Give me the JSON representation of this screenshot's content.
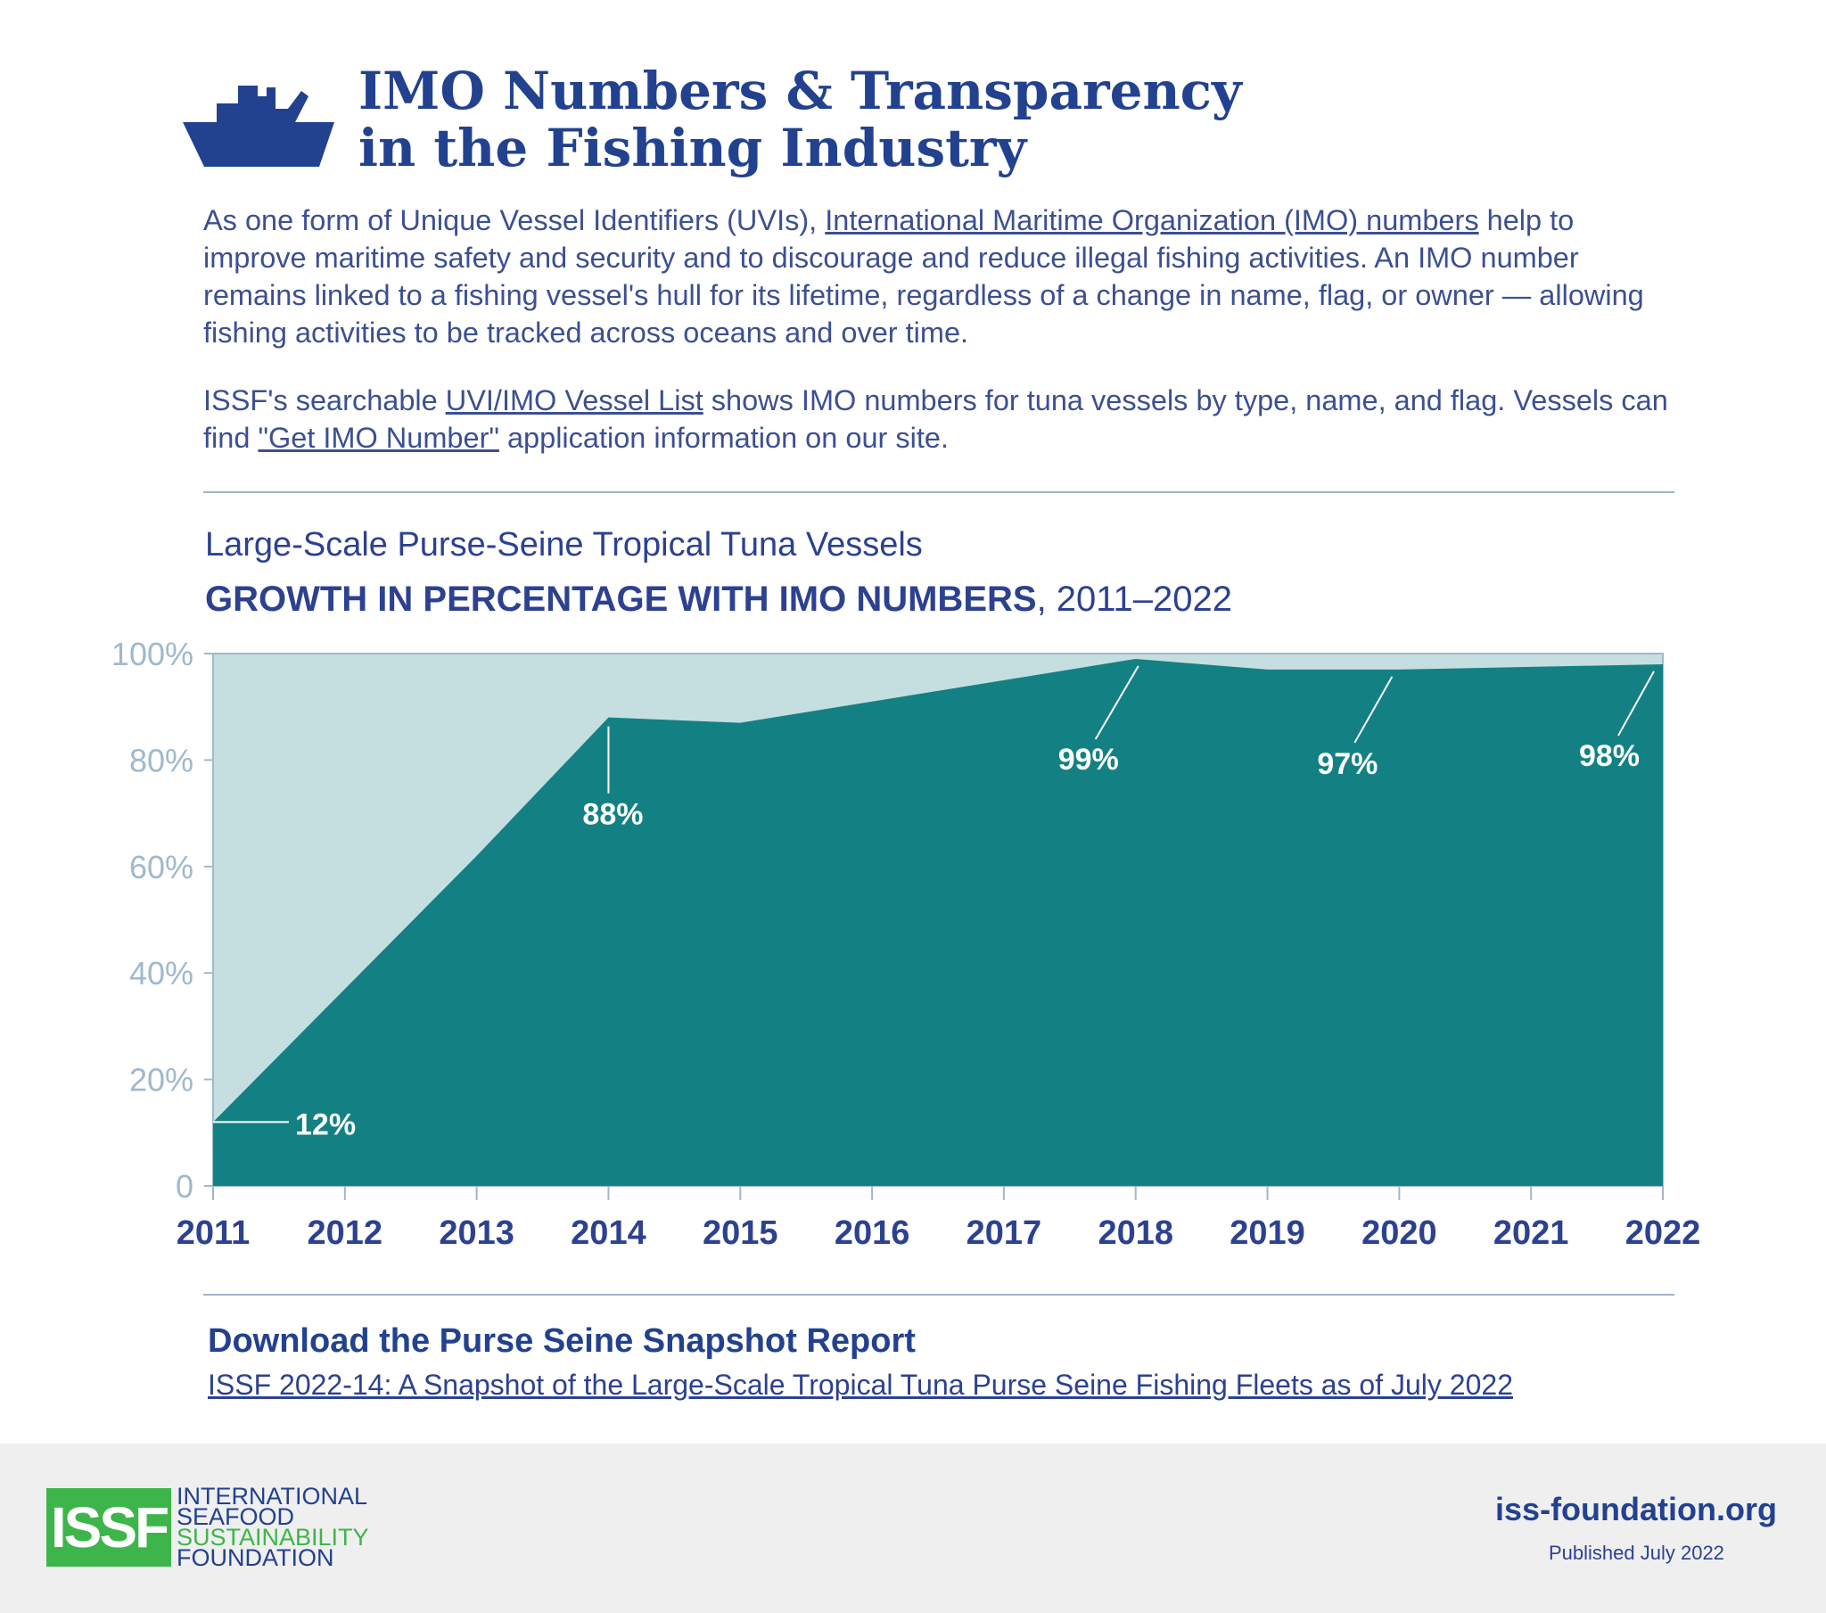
{
  "title": {
    "line1": "IMO Numbers & Transparency",
    "line2": "in the Fishing Industry"
  },
  "intro": {
    "p1_before": "As one form of Unique Vessel Identifiers (UVIs), ",
    "p1_link": "International Maritime Organization (IMO) numbers",
    "p1_after": " help to improve maritime safety and security and to discourage and reduce illegal fishing activities. An IMO number remains linked to a fishing vessel's hull for its lifetime, regardless of a change in name, flag, or owner — allowing fishing activities to be tracked across oceans and over time.",
    "p2_before": "ISSF's searchable ",
    "p2_link1": "UVI/IMO Vessel List",
    "p2_middle": " shows IMO numbers for tuna vessels by type, name, and flag. Vessels can find ",
    "p2_link2": "\"Get IMO Number\"",
    "p2_after": " application information on our site."
  },
  "chart_data": {
    "type": "area",
    "subtitle": "Large-Scale Purse-Seine Tropical Tuna Vessels",
    "title_bold": "GROWTH IN PERCENTAGE WITH IMO NUMBERS",
    "title_range": ", 2011–2022",
    "x": [
      "2011",
      "2012",
      "2013",
      "2014",
      "2015",
      "2016",
      "2017",
      "2018",
      "2019",
      "2020",
      "2021",
      "2022"
    ],
    "values": [
      12,
      37,
      62,
      88,
      87,
      91,
      95,
      99,
      97,
      97,
      97.5,
      98
    ],
    "ylim": [
      0,
      100
    ],
    "yticks": [
      0,
      20,
      40,
      60,
      80,
      100
    ],
    "ytick_labels": [
      "0",
      "20%",
      "40%",
      "60%",
      "80%",
      "100%"
    ],
    "data_labels": [
      {
        "year": "2011",
        "text": "12%"
      },
      {
        "year": "2014",
        "text": "88%"
      },
      {
        "year": "2018",
        "text": "99%"
      },
      {
        "year": "2020",
        "text": "97%"
      },
      {
        "year": "2022",
        "text": "98%"
      }
    ],
    "colors": {
      "fill": "#138183",
      "background": "#c5dfe0",
      "axis": "#9fb9cc"
    }
  },
  "download": {
    "heading": "Download the Purse Seine Snapshot Report",
    "link": "ISSF 2022-14: A Snapshot of the Large-Scale Tropical Tuna Purse Seine Fishing Fleets as of July 2022"
  },
  "footer": {
    "logo_abbr": "ISSF",
    "logo_lines": [
      "INTERNATIONAL",
      "SEAFOOD",
      "SUSTAINABILITY",
      "FOUNDATION"
    ],
    "site": "iss-foundation.org",
    "published": "Published July 2022"
  },
  "colors": {
    "brand_blue": "#22418f",
    "brand_green": "#3db54a",
    "footer_bg": "#efefef"
  }
}
